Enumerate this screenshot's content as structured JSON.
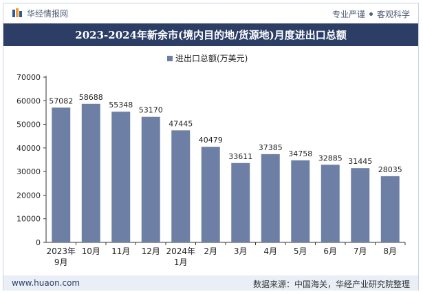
{
  "header": {
    "brand_name": "华经情报网",
    "tagline_left": "专业严谨",
    "tagline_right": "客观科学"
  },
  "chart_data": {
    "type": "bar",
    "title": "2023-2024年新余市(境内目的地/货源地)月度进出口总额",
    "legend": "进出口总额(万美元)",
    "categories": [
      "2023年9月",
      "10月",
      "11月",
      "12月",
      "2024年1月",
      "2月",
      "3月",
      "4月",
      "5月",
      "6月",
      "7月",
      "8月"
    ],
    "series": [
      {
        "name": "进出口总额(万美元)",
        "values": [
          57082,
          58688,
          55348,
          53170,
          47445,
          40479,
          33611,
          37385,
          34758,
          32885,
          31445,
          28035
        ]
      }
    ],
    "ylim": [
      0,
      70000
    ],
    "yticks": [
      0,
      10000,
      20000,
      30000,
      40000,
      50000,
      60000,
      70000
    ],
    "grid": false,
    "legend_position": "top-center",
    "bar_color": "#6e7fa6"
  },
  "footer": {
    "website": "www.huaon.com",
    "source": "数据来源：中国海关，华经产业研究院整理"
  }
}
